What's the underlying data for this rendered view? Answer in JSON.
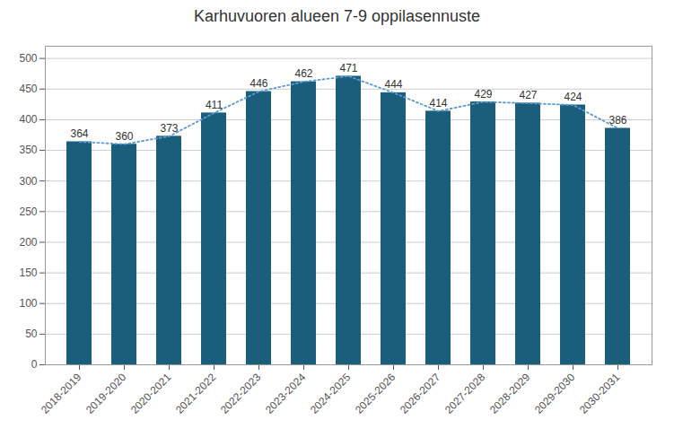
{
  "chart_data": {
    "type": "bar",
    "title": "Karhuvuoren alueen 7-9 oppilasennuste",
    "categories": [
      "2018-2019",
      "2019-2020",
      "2020-2021",
      "2021-2022",
      "2022-2023",
      "2023-2024",
      "2024-2025",
      "2025-2026",
      "2026-2027",
      "2027-2028",
      "2028-2029",
      "2029-2030",
      "2030-2031"
    ],
    "series": [
      {
        "type": "bar",
        "color": "#1b5e7b",
        "values": [
          364,
          360,
          373,
          411,
          446,
          462,
          471,
          444,
          414,
          429,
          427,
          424,
          386
        ]
      },
      {
        "type": "line",
        "color": "#5b9bd5",
        "line_style": "dotted",
        "values": [
          364,
          360,
          373,
          411,
          446,
          462,
          471,
          444,
          414,
          429,
          427,
          424,
          386
        ]
      }
    ],
    "ylim": [
      0,
      520
    ],
    "yticks": [
      0,
      50,
      100,
      150,
      200,
      250,
      300,
      350,
      400,
      450,
      500
    ],
    "grid": true,
    "data_labels": true
  }
}
